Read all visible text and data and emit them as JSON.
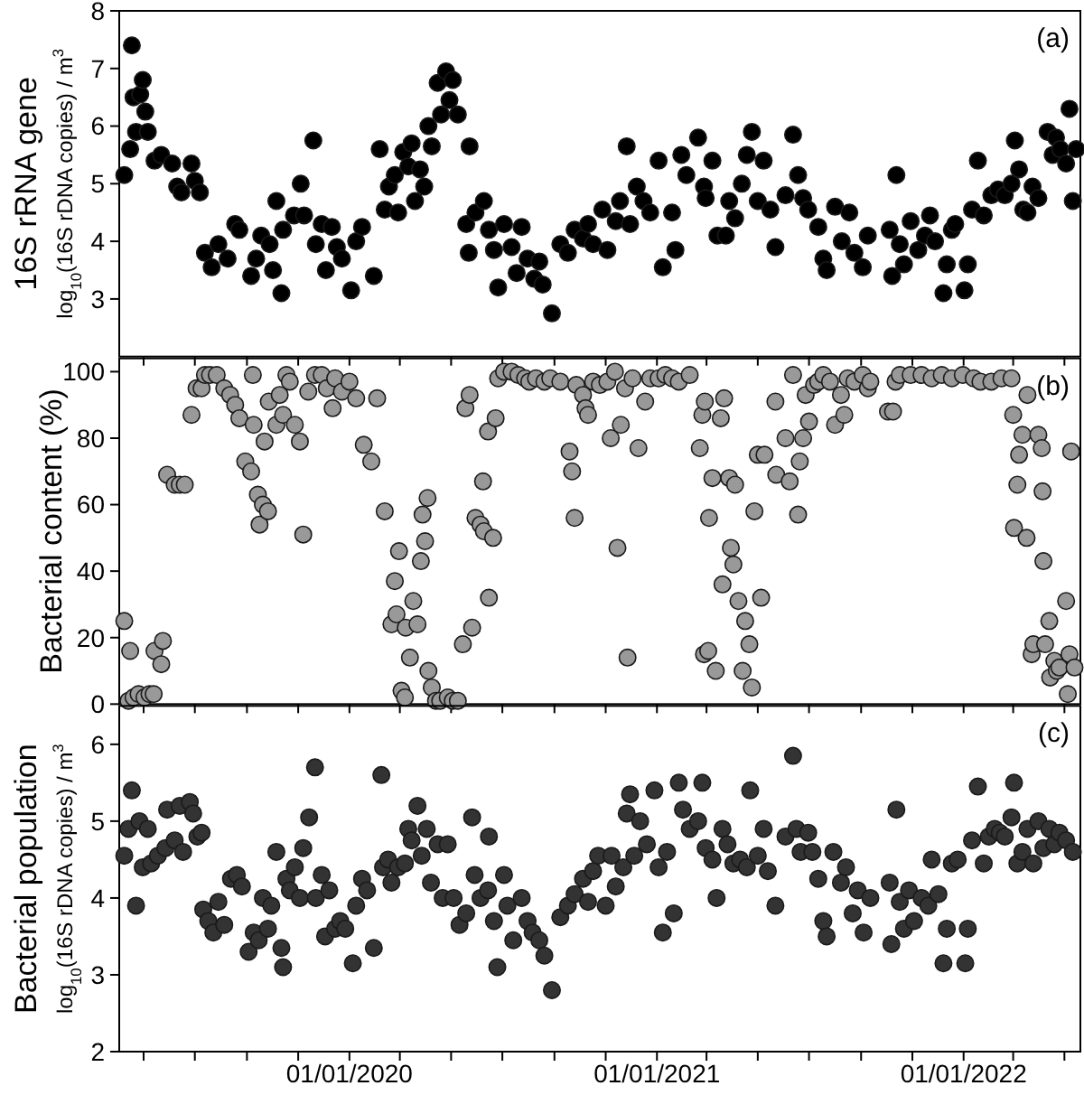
{
  "chart_data": [
    {
      "type": "scatter",
      "ylabel": "16S rRNA gene\nlog$_{10}$(16S rDNA copies) / m$^{3}$",
      "annotations": [
        "(a)"
      ],
      "marker": "circle",
      "tick_labels": "y",
      "xlim": [
        "2019-04-02",
        "2022-05-20"
      ],
      "ylim": [
        2,
        8
      ],
      "yticks": [
        3,
        4,
        5,
        6,
        7,
        8
      ],
      "xticks": [
        {
          "value": "2019-05-01",
          "label": null
        },
        {
          "value": "2019-07-01",
          "label": null
        },
        {
          "value": "2019-09-01",
          "label": null
        },
        {
          "value": "2019-11-01",
          "label": null
        },
        {
          "value": "2020-01-01",
          "label": null
        },
        {
          "value": "2020-03-01",
          "label": null
        },
        {
          "value": "2020-05-01",
          "label": null
        },
        {
          "value": "2020-07-01",
          "label": null
        },
        {
          "value": "2020-09-01",
          "label": null
        },
        {
          "value": "2020-11-01",
          "label": null
        },
        {
          "value": "2021-01-01",
          "label": null
        },
        {
          "value": "2021-03-01",
          "label": null
        },
        {
          "value": "2021-05-01",
          "label": null
        },
        {
          "value": "2021-07-01",
          "label": null
        },
        {
          "value": "2021-09-01",
          "label": null
        },
        {
          "value": "2021-11-01",
          "label": null
        },
        {
          "value": "2022-01-01",
          "label": null
        },
        {
          "value": "2022-03-01",
          "label": null
        },
        {
          "value": "2022-05-01",
          "label": null
        }
      ],
      "series": [
        {
          "color": "#000000",
          "x": [
            "2019-04-08",
            "2019-04-17",
            "2019-04-15",
            "2019-04-19",
            "2019-04-22",
            "2019-04-27",
            "2019-04-30",
            "2019-05-03",
            "2019-05-06",
            "2019-05-14",
            "2019-05-22",
            "2019-06-04",
            "2019-06-10",
            "2019-06-15",
            "2019-06-27",
            "2019-07-01",
            "2019-07-07",
            "2019-07-13",
            "2019-07-21",
            "2019-07-29",
            "2019-08-09",
            "2019-08-18",
            "2019-08-23",
            "2019-09-06",
            "2019-09-12",
            "2019-09-18",
            "2019-09-28",
            "2019-10-02",
            "2019-10-06",
            "2019-10-12",
            "2019-10-14",
            "2019-10-27",
            "2019-11-04",
            "2019-11-08",
            "2019-11-19",
            "2019-11-22",
            "2019-11-29",
            "2019-12-04",
            "2019-12-11",
            "2019-12-17",
            "2019-12-23",
            "2020-01-03",
            "2020-01-09",
            "2020-01-16",
            "2020-01-30",
            "2020-02-06",
            "2020-02-12",
            "2020-02-17",
            "2020-02-24",
            "2020-02-28",
            "2020-03-05",
            "2020-03-11",
            "2020-03-15",
            "2020-03-19",
            "2020-03-25",
            "2020-03-30",
            "2020-04-04",
            "2020-04-08",
            "2020-04-15",
            "2020-04-19",
            "2020-04-25",
            "2020-04-29",
            "2020-05-03",
            "2020-05-09",
            "2020-05-19",
            "2020-05-22",
            "2020-05-23",
            "2020-05-30",
            "2020-06-09",
            "2020-06-15",
            "2020-06-21",
            "2020-06-26",
            "2020-07-03",
            "2020-07-12",
            "2020-07-18",
            "2020-07-24",
            "2020-07-31",
            "2020-08-08",
            "2020-08-14",
            "2020-08-18",
            "2020-08-29",
            "2020-09-08",
            "2020-09-17",
            "2020-09-25",
            "2020-10-05",
            "2020-10-11",
            "2020-10-17",
            "2020-10-28",
            "2020-11-03",
            "2020-11-13",
            "2020-11-18",
            "2020-11-26",
            "2020-11-30",
            "2020-12-08",
            "2020-12-16",
            "2020-12-24",
            "2021-01-03",
            "2021-01-08",
            "2021-01-19",
            "2021-01-23",
            "2021-01-30",
            "2021-02-05",
            "2021-02-19",
            "2021-02-26",
            "2021-02-28",
            "2021-03-08",
            "2021-03-14",
            "2021-03-24",
            "2021-03-28",
            "2021-04-04",
            "2021-04-12",
            "2021-04-18",
            "2021-04-24",
            "2021-05-01",
            "2021-05-08",
            "2021-05-16",
            "2021-05-22",
            "2021-06-03",
            "2021-06-12",
            "2021-06-18",
            "2021-06-24",
            "2021-06-30",
            "2021-07-12",
            "2021-07-18",
            "2021-07-22",
            "2021-08-01",
            "2021-08-09",
            "2021-08-18",
            "2021-08-24",
            "2021-09-03",
            "2021-09-09",
            "2021-10-05",
            "2021-10-08",
            "2021-10-13",
            "2021-10-17",
            "2021-10-22",
            "2021-10-30",
            "2021-11-08",
            "2021-11-16",
            "2021-11-22",
            "2021-11-28",
            "2021-12-08",
            "2021-12-12",
            "2021-12-18",
            "2021-12-22",
            "2022-01-02",
            "2022-01-06",
            "2022-01-11",
            "2022-01-18",
            "2022-01-25",
            "2022-02-03",
            "2022-02-11",
            "2022-02-19",
            "2022-02-27",
            "2022-03-03",
            "2022-03-08",
            "2022-03-13",
            "2022-03-18",
            "2022-03-24",
            "2022-03-31",
            "2022-04-11",
            "2022-04-17",
            "2022-04-21",
            "2022-04-26",
            "2022-05-03",
            "2022-05-07",
            "2022-05-11",
            "2022-05-15"
          ],
          "values": [
            5.15,
            7.4,
            5.6,
            6.5,
            5.9,
            6.55,
            6.8,
            6.25,
            5.9,
            5.4,
            5.5,
            5.35,
            4.95,
            4.85,
            5.35,
            5.05,
            4.85,
            3.8,
            3.55,
            3.95,
            3.7,
            4.3,
            4.2,
            3.4,
            3.7,
            4.1,
            3.95,
            3.5,
            4.7,
            3.1,
            4.2,
            4.45,
            5.0,
            4.45,
            5.75,
            3.95,
            4.3,
            3.5,
            4.25,
            3.9,
            3.7,
            3.15,
            4.0,
            4.25,
            3.4,
            5.6,
            4.55,
            4.95,
            5.15,
            4.5,
            5.55,
            5.3,
            5.7,
            4.7,
            5.25,
            4.95,
            6.0,
            5.65,
            6.75,
            6.2,
            6.95,
            6.45,
            6.8,
            6.2,
            4.3,
            3.8,
            5.65,
            4.5,
            4.7,
            4.2,
            3.85,
            3.2,
            4.3,
            3.9,
            3.45,
            4.25,
            3.7,
            3.35,
            3.65,
            3.25,
            2.75,
            3.95,
            3.8,
            4.2,
            4.05,
            4.3,
            3.95,
            4.55,
            3.85,
            4.35,
            4.7,
            5.65,
            4.3,
            4.95,
            4.7,
            4.5,
            5.4,
            3.55,
            4.5,
            3.85,
            5.5,
            5.15,
            5.8,
            4.95,
            4.75,
            5.4,
            4.1,
            4.1,
            4.7,
            4.4,
            5.0,
            5.5,
            5.9,
            4.7,
            5.4,
            4.55,
            3.9,
            4.8,
            5.85,
            5.15,
            4.75,
            4.55,
            4.25,
            3.7,
            3.5,
            4.6,
            4.0,
            4.5,
            3.8,
            3.55,
            4.1,
            4.2,
            3.4,
            5.15,
            3.95,
            3.6,
            4.35,
            3.85,
            4.1,
            4.45,
            4.0,
            3.1,
            3.6,
            4.2,
            4.3,
            3.15,
            3.6,
            4.55,
            5.4,
            4.45,
            4.8,
            4.9,
            4.8,
            5.0,
            5.75,
            5.25,
            4.55,
            4.5,
            4.95,
            4.75,
            5.9,
            5.5,
            5.8,
            5.6,
            5.35,
            6.3,
            4.7,
            5.6
          ]
        }
      ]
    },
    {
      "type": "scatter",
      "ylabel": "Bacterial content (%)",
      "annotations": [
        "(b)"
      ],
      "marker": "circle",
      "tick_labels": "y",
      "xlim": [
        "2019-04-02",
        "2022-05-20"
      ],
      "ylim": [
        0,
        104
      ],
      "yticks": [
        0,
        20,
        40,
        60,
        80,
        100
      ],
      "xticks": [
        {
          "value": "2019-05-01",
          "label": null
        },
        {
          "value": "2019-07-01",
          "label": null
        },
        {
          "value": "2019-09-01",
          "label": null
        },
        {
          "value": "2019-11-01",
          "label": null
        },
        {
          "value": "2020-01-01",
          "label": null
        },
        {
          "value": "2020-03-01",
          "label": null
        },
        {
          "value": "2020-05-01",
          "label": null
        },
        {
          "value": "2020-07-01",
          "label": null
        },
        {
          "value": "2020-09-01",
          "label": null
        },
        {
          "value": "2020-11-01",
          "label": null
        },
        {
          "value": "2021-01-01",
          "label": null
        },
        {
          "value": "2021-03-01",
          "label": null
        },
        {
          "value": "2021-05-01",
          "label": null
        },
        {
          "value": "2021-07-01",
          "label": null
        },
        {
          "value": "2021-09-01",
          "label": null
        },
        {
          "value": "2021-11-01",
          "label": null
        },
        {
          "value": "2022-01-01",
          "label": null
        },
        {
          "value": "2022-03-01",
          "label": null
        },
        {
          "value": "2022-05-01",
          "label": null
        }
      ],
      "series": [
        {
          "color": "#999999",
          "x": [
            "2019-04-08",
            "2019-04-15",
            "2019-04-13",
            "2019-04-19",
            "2019-04-25",
            "2019-05-02",
            "2019-05-08",
            "2019-05-13",
            "2019-05-14",
            "2019-05-22",
            "2019-05-24",
            "2019-05-29",
            "2019-06-07",
            "2019-06-13",
            "2019-06-19",
            "2019-06-27",
            "2019-07-03",
            "2019-07-09",
            "2019-07-13",
            "2019-07-19",
            "2019-07-27",
            "2019-08-05",
            "2019-08-12",
            "2019-08-18",
            "2019-08-23",
            "2019-08-30",
            "2019-09-06",
            "2019-09-08",
            "2019-09-09",
            "2019-09-14",
            "2019-09-16",
            "2019-09-20",
            "2019-09-26",
            "2019-09-22",
            "2019-09-27",
            "2019-10-06",
            "2019-10-10",
            "2019-10-14",
            "2019-10-18",
            "2019-10-22",
            "2019-10-28",
            "2019-11-03",
            "2019-11-07",
            "2019-11-13",
            "2019-11-21",
            "2019-11-29",
            "2019-12-05",
            "2019-12-12",
            "2019-12-15",
            "2019-12-23",
            "2020-01-01",
            "2020-01-09",
            "2020-01-18",
            "2020-01-27",
            "2020-02-03",
            "2020-02-12",
            "2020-02-20",
            "2020-02-24",
            "2020-02-26",
            "2020-02-29",
            "2020-03-03",
            "2020-03-07",
            "2020-03-08",
            "2020-03-13",
            "2020-03-17",
            "2020-03-22",
            "2020-03-26",
            "2020-03-28",
            "2020-03-31",
            "2020-04-03",
            "2020-04-04",
            "2020-04-08",
            "2020-04-13",
            "2020-04-18",
            "2020-04-27",
            "2020-05-03",
            "2020-05-09",
            "2020-05-15",
            "2020-05-18",
            "2020-05-23",
            "2020-05-26",
            "2020-05-30",
            "2020-06-05",
            "2020-06-08",
            "2020-06-09",
            "2020-06-15",
            "2020-06-14",
            "2020-06-20",
            "2020-06-23",
            "2020-06-26",
            "2020-07-03",
            "2020-07-12",
            "2020-07-20",
            "2020-07-28",
            "2020-08-02",
            "2020-08-10",
            "2020-08-20",
            "2020-08-27",
            "2020-09-08",
            "2020-09-19",
            "2020-09-22",
            "2020-09-25",
            "2020-09-27",
            "2020-10-05",
            "2020-10-08",
            "2020-10-11",
            "2020-10-17",
            "2020-10-25",
            "2020-11-03",
            "2020-11-07",
            "2020-11-12",
            "2020-11-15",
            "2020-11-19",
            "2020-11-24",
            "2020-11-27",
            "2020-12-03",
            "2020-12-10",
            "2020-12-18",
            "2020-12-24",
            "2021-01-03",
            "2021-01-11",
            "2021-01-19",
            "2021-01-27",
            "2021-02-09",
            "2021-02-21",
            "2021-02-24",
            "2021-02-26",
            "2021-02-27",
            "2021-03-03",
            "2021-03-08",
            "2021-03-04",
            "2021-03-12",
            "2021-03-18",
            "2021-03-20",
            "2021-03-22",
            "2021-03-28",
            "2021-03-30",
            "2021-04-02",
            "2021-04-04",
            "2021-04-08",
            "2021-04-13",
            "2021-04-16",
            "2021-04-21",
            "2021-04-24",
            "2021-04-27",
            "2021-05-01",
            "2021-05-05",
            "2021-05-09",
            "2021-05-22",
            "2021-05-23",
            "2021-06-03",
            "2021-06-08",
            "2021-06-12",
            "2021-06-18",
            "2021-06-20",
            "2021-06-24",
            "2021-06-27",
            "2021-07-01",
            "2021-07-07",
            "2021-07-12",
            "2021-07-18",
            "2021-07-26",
            "2021-08-01",
            "2021-08-08",
            "2021-08-12",
            "2021-08-16",
            "2021-08-24",
            "2021-09-03",
            "2021-09-09",
            "2021-09-12",
            "2021-10-03",
            "2021-10-09",
            "2021-10-12",
            "2021-10-17",
            "2021-10-30",
            "2021-11-12",
            "2021-11-24",
            "2021-12-06",
            "2021-12-18",
            "2021-12-31",
            "2022-01-13",
            "2022-01-21",
            "2022-02-03",
            "2022-02-15",
            "2022-02-27",
            "2022-03-01",
            "2022-03-02",
            "2022-03-06",
            "2022-03-08",
            "2022-03-12",
            "2022-03-17",
            "2022-03-18",
            "2022-03-23",
            "2022-03-25",
            "2022-03-31",
            "2022-04-04",
            "2022-04-05",
            "2022-04-06",
            "2022-04-08",
            "2022-04-13",
            "2022-04-14",
            "2022-04-19",
            "2022-04-22",
            "2022-04-25",
            "2022-05-03",
            "2022-05-05",
            "2022-05-07",
            "2022-05-09",
            "2022-05-13"
          ],
          "values": [
            25,
            16,
            1,
            2,
            3,
            2,
            3,
            3,
            16,
            12,
            19,
            69,
            66,
            66,
            66,
            87,
            95,
            95,
            99,
            99,
            99,
            95,
            93,
            90,
            86,
            73,
            70,
            99,
            84,
            63,
            54,
            60,
            58,
            79,
            91,
            84,
            93,
            87,
            99,
            97,
            84,
            79,
            51,
            94,
            99,
            99,
            95,
            89,
            98,
            94,
            97,
            92,
            78,
            73,
            92,
            58,
            24,
            37,
            27,
            46,
            4,
            2,
            23,
            14,
            31,
            24,
            43,
            57,
            49,
            62,
            10,
            5,
            1,
            1,
            2,
            1,
            1,
            18,
            89,
            93,
            23,
            56,
            54,
            67,
            52,
            32,
            82,
            50,
            86,
            98,
            100,
            100,
            99,
            98,
            97,
            98,
            97,
            98,
            97,
            76,
            70,
            56,
            96,
            93,
            89,
            87,
            97,
            96,
            97,
            80,
            100,
            47,
            84,
            95,
            14,
            98,
            77,
            91,
            98,
            98,
            99,
            98,
            97,
            99,
            77,
            87,
            15,
            91,
            16,
            68,
            56,
            10,
            86,
            36,
            92,
            68,
            47,
            42,
            66,
            31,
            10,
            25,
            18,
            5,
            58,
            75,
            32,
            75,
            91,
            69,
            80,
            67,
            99,
            57,
            73,
            80,
            93,
            85,
            96,
            97,
            99,
            97,
            84,
            93,
            87,
            98,
            97,
            99,
            95,
            97,
            88,
            88,
            97,
            99,
            99,
            99,
            98,
            99,
            98,
            99,
            98,
            97,
            97,
            98,
            98,
            87,
            53,
            66,
            75,
            81,
            50,
            93,
            15,
            18,
            81,
            77,
            64,
            43,
            18,
            25,
            8,
            13,
            10,
            11,
            31,
            3,
            15,
            76,
            11
          ]
        }
      ]
    },
    {
      "type": "scatter",
      "ylabel": "Bacterial population\nlog$_{10}$(16S rDNA copies) / m$^{3}$",
      "annotations": [
        "(c)"
      ],
      "marker": "circle",
      "xlim": [
        "2019-04-02",
        "2022-05-20"
      ],
      "ylim": [
        2,
        6.5
      ],
      "yticks": [
        2,
        3,
        4,
        5,
        6
      ],
      "xticks": [
        {
          "value": "2019-05-01",
          "label": null
        },
        {
          "value": "2019-07-01",
          "label": null
        },
        {
          "value": "2019-09-01",
          "label": null
        },
        {
          "value": "2019-11-01",
          "label": null
        },
        {
          "value": "2020-01-01",
          "label": "01/01/2020"
        },
        {
          "value": "2020-03-01",
          "label": null
        },
        {
          "value": "2020-05-01",
          "label": null
        },
        {
          "value": "2020-07-01",
          "label": null
        },
        {
          "value": "2020-09-01",
          "label": null
        },
        {
          "value": "2020-11-01",
          "label": null
        },
        {
          "value": "2021-01-01",
          "label": "01/01/2021"
        },
        {
          "value": "2021-03-01",
          "label": null
        },
        {
          "value": "2021-05-01",
          "label": null
        },
        {
          "value": "2021-07-01",
          "label": null
        },
        {
          "value": "2021-09-01",
          "label": null
        },
        {
          "value": "2021-11-01",
          "label": null
        },
        {
          "value": "2022-01-01",
          "label": "01/01/2022"
        },
        {
          "value": "2022-03-01",
          "label": null
        },
        {
          "value": "2022-05-01",
          "label": null
        }
      ],
      "series": [
        {
          "color": "#333333",
          "x": [
            "2019-04-08",
            "2019-04-17",
            "2019-04-13",
            "2019-04-22",
            "2019-04-26",
            "2019-04-30",
            "2019-05-06",
            "2019-05-10",
            "2019-05-18",
            "2019-05-27",
            "2019-05-29",
            "2019-06-07",
            "2019-06-13",
            "2019-06-17",
            "2019-06-25",
            "2019-06-29",
            "2019-07-04",
            "2019-07-09",
            "2019-07-11",
            "2019-07-17",
            "2019-07-23",
            "2019-07-29",
            "2019-08-05",
            "2019-08-13",
            "2019-08-20",
            "2019-08-26",
            "2019-09-03",
            "2019-09-09",
            "2019-09-15",
            "2019-09-20",
            "2019-09-26",
            "2019-09-30",
            "2019-10-06",
            "2019-10-12",
            "2019-10-14",
            "2019-10-18",
            "2019-10-22",
            "2019-10-28",
            "2019-11-03",
            "2019-11-07",
            "2019-11-14",
            "2019-11-21",
            "2019-11-22",
            "2019-11-29",
            "2019-12-03",
            "2019-12-08",
            "2019-12-15",
            "2019-12-21",
            "2019-12-27",
            "2020-01-05",
            "2020-01-09",
            "2020-01-16",
            "2020-01-22",
            "2020-01-30",
            "2020-02-08",
            "2020-02-10",
            "2020-02-16",
            "2020-02-20",
            "2020-02-28",
            "2020-03-07",
            "2020-03-11",
            "2020-03-15",
            "2020-03-22",
            "2020-03-27",
            "2020-04-02",
            "2020-04-07",
            "2020-04-15",
            "2020-04-21",
            "2020-04-27",
            "2020-05-04",
            "2020-05-11",
            "2020-05-19",
            "2020-05-26",
            "2020-05-29",
            "2020-06-05",
            "2020-06-15",
            "2020-06-14",
            "2020-06-21",
            "2020-06-25",
            "2020-07-03",
            "2020-07-07",
            "2020-07-14",
            "2020-07-24",
            "2020-07-31",
            "2020-08-06",
            "2020-08-14",
            "2020-08-20",
            "2020-08-29",
            "2020-09-08",
            "2020-09-17",
            "2020-09-25",
            "2020-10-05",
            "2020-10-11",
            "2020-10-17",
            "2020-10-23",
            "2020-11-01",
            "2020-11-08",
            "2020-11-13",
            "2020-11-22",
            "2020-11-26",
            "2020-11-30",
            "2020-12-05",
            "2020-12-12",
            "2020-12-20",
            "2020-12-29",
            "2021-01-03",
            "2021-01-08",
            "2021-01-13",
            "2021-01-21",
            "2021-01-27",
            "2021-02-01",
            "2021-02-09",
            "2021-02-19",
            "2021-02-24",
            "2021-02-28",
            "2021-03-08",
            "2021-03-13",
            "2021-03-20",
            "2021-03-26",
            "2021-04-02",
            "2021-04-10",
            "2021-04-18",
            "2021-04-22",
            "2021-05-01",
            "2021-05-08",
            "2021-05-13",
            "2021-05-22",
            "2021-06-03",
            "2021-06-12",
            "2021-06-16",
            "2021-06-21",
            "2021-06-30",
            "2021-07-05",
            "2021-07-12",
            "2021-07-18",
            "2021-07-22",
            "2021-07-30",
            "2021-08-08",
            "2021-08-14",
            "2021-08-22",
            "2021-08-28",
            "2021-09-04",
            "2021-09-12",
            "2021-10-05",
            "2021-10-07",
            "2021-10-13",
            "2021-10-17",
            "2021-10-22",
            "2021-10-28",
            "2021-11-03",
            "2021-11-12",
            "2021-11-20",
            "2021-11-24",
            "2021-12-02",
            "2021-12-08",
            "2021-12-12",
            "2021-12-18",
            "2021-12-25",
            "2022-01-03",
            "2022-01-06",
            "2022-01-11",
            "2022-01-18",
            "2022-01-25",
            "2022-01-31",
            "2022-02-07",
            "2022-02-13",
            "2022-02-19",
            "2022-02-27",
            "2022-03-02",
            "2022-03-06",
            "2022-03-12",
            "2022-03-18",
            "2022-03-25",
            "2022-03-31",
            "2022-04-06",
            "2022-04-13",
            "2022-04-19",
            "2022-04-25",
            "2022-05-03",
            "2022-05-11"
          ],
          "values": [
            4.55,
            5.4,
            4.9,
            3.9,
            5.0,
            4.4,
            4.9,
            4.45,
            4.55,
            4.65,
            5.15,
            4.75,
            5.2,
            4.6,
            5.25,
            5.1,
            4.8,
            4.85,
            3.85,
            3.7,
            3.55,
            3.95,
            3.65,
            4.25,
            4.3,
            4.15,
            3.3,
            3.55,
            3.45,
            4.0,
            3.6,
            3.9,
            4.6,
            3.35,
            3.1,
            4.25,
            4.1,
            4.4,
            4.0,
            4.65,
            5.05,
            5.7,
            4.0,
            4.3,
            3.5,
            4.1,
            3.6,
            3.7,
            3.6,
            3.15,
            3.9,
            4.25,
            4.1,
            3.35,
            5.6,
            4.4,
            4.5,
            4.2,
            4.4,
            4.45,
            4.9,
            4.75,
            5.2,
            4.55,
            4.9,
            4.2,
            4.7,
            4.0,
            4.7,
            4.0,
            3.65,
            3.8,
            5.05,
            4.3,
            4.0,
            4.8,
            4.1,
            3.7,
            3.1,
            4.3,
            3.9,
            3.45,
            4.0,
            3.7,
            3.55,
            3.45,
            3.25,
            2.8,
            3.75,
            3.9,
            4.05,
            4.25,
            3.95,
            4.35,
            4.55,
            3.9,
            4.55,
            4.15,
            4.4,
            5.1,
            5.35,
            4.55,
            5.0,
            4.7,
            5.4,
            4.4,
            3.55,
            4.6,
            3.8,
            5.5,
            5.15,
            4.9,
            5.0,
            5.5,
            4.65,
            4.5,
            4.0,
            4.9,
            4.7,
            4.45,
            4.5,
            4.4,
            5.4,
            4.55,
            4.9,
            4.35,
            3.9,
            4.8,
            5.85,
            4.9,
            4.6,
            4.85,
            4.6,
            4.25,
            3.7,
            3.5,
            4.6,
            4.2,
            4.4,
            3.8,
            4.1,
            3.55,
            4.0,
            4.2,
            3.4,
            5.15,
            3.95,
            3.6,
            4.1,
            3.7,
            4.0,
            3.9,
            4.5,
            4.05,
            3.15,
            3.6,
            4.45,
            4.5,
            3.15,
            3.6,
            4.75,
            5.45,
            4.45,
            4.8,
            4.9,
            4.85,
            4.8,
            5.05,
            5.5,
            4.45,
            4.6,
            4.9,
            4.45,
            5.0,
            4.65,
            4.9,
            4.7,
            4.85,
            4.75,
            4.6
          ]
        }
      ]
    }
  ]
}
